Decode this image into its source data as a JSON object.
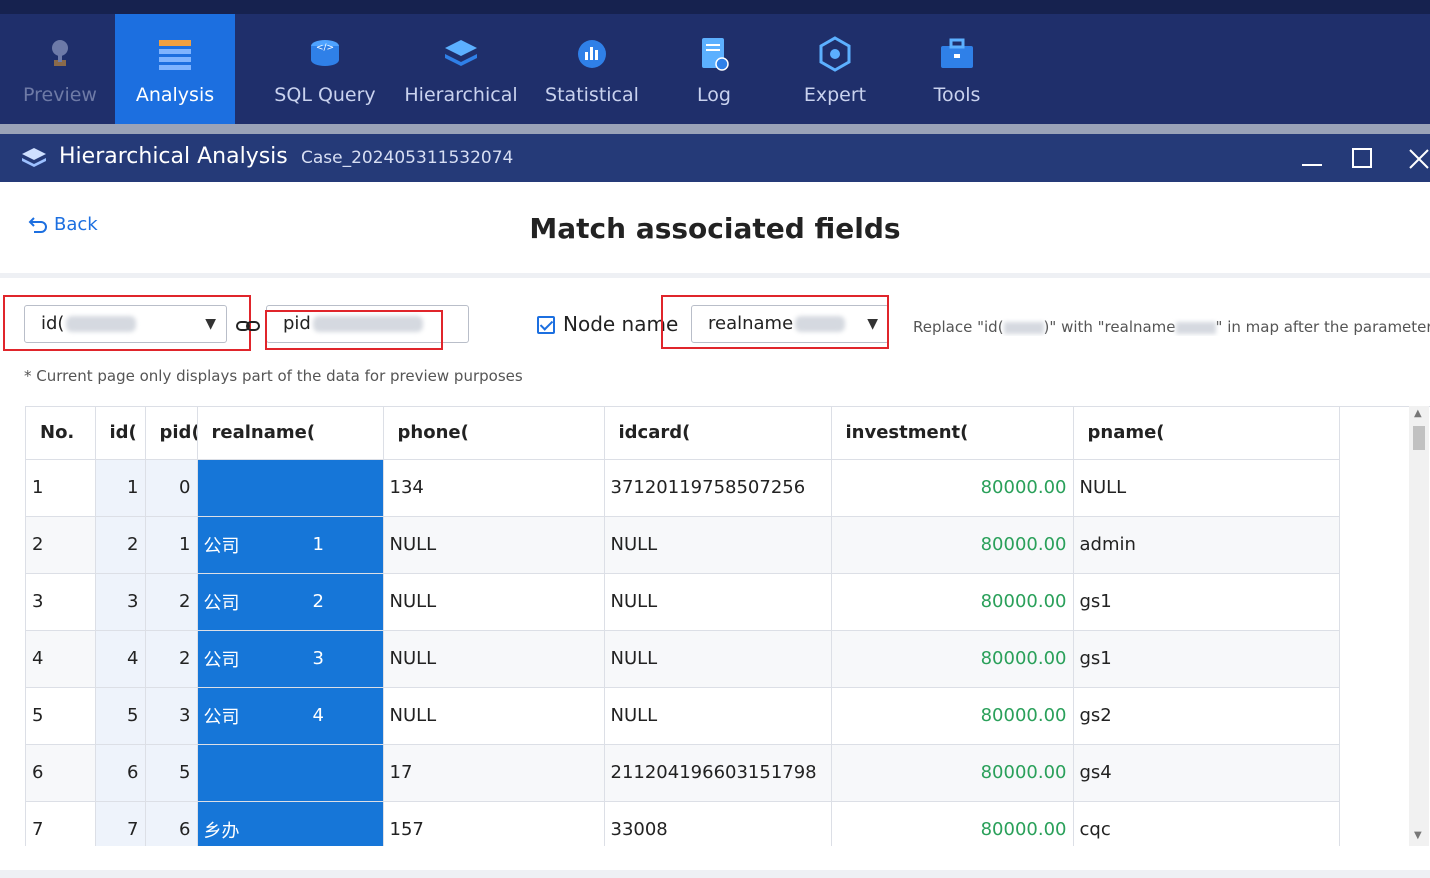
{
  "toolbar": {
    "items": [
      {
        "label": "Preview",
        "icon": "satellite-dish-icon"
      },
      {
        "label": "Analysis",
        "icon": "table-chart-icon"
      },
      {
        "label": "SQL Query",
        "icon": "code-database-icon"
      },
      {
        "label": "Hierarchical",
        "icon": "layers-icon"
      },
      {
        "label": "Statistical",
        "icon": "statistics-icon"
      },
      {
        "label": "Log",
        "icon": "log-document-icon"
      },
      {
        "label": "Expert",
        "icon": "expert-cube-icon"
      },
      {
        "label": "Tools",
        "icon": "toolbox-icon"
      }
    ],
    "active": "Analysis"
  },
  "window": {
    "title": "Hierarchical Analysis",
    "case": "Case_202405311532074"
  },
  "page": {
    "back_label": "Back",
    "title": "Match associated fields",
    "id_field": "id(",
    "pid_field": "pid",
    "node_name_label": "Node name",
    "node_name_value": "realname",
    "replace_note": "Replace \"id(",
    "replace_note_mid": ")\" with \"realname",
    "replace_note_end": "\" in map after the parameter",
    "hint": "* Current page only displays part of the data for preview purposes"
  },
  "table": {
    "columns": [
      "No.",
      "id(",
      "pid(",
      "realname(",
      "phone(",
      "idcard(",
      "investment(",
      "pname("
    ],
    "rows": [
      {
        "no": "1",
        "id": "1",
        "pid": "0",
        "rn": "",
        "rn_tail": "",
        "phone": "134",
        "idcard": "37120119758507256",
        "inv": "80000.00",
        "pname": "NULL"
      },
      {
        "no": "2",
        "id": "2",
        "pid": "1",
        "rn": "公司",
        "rn_tail": "1",
        "phone": "NULL",
        "idcard": "NULL",
        "inv": "80000.00",
        "pname": "admin"
      },
      {
        "no": "3",
        "id": "3",
        "pid": "2",
        "rn": "公司",
        "rn_tail": "2",
        "phone": "NULL",
        "idcard": "NULL",
        "inv": "80000.00",
        "pname": "gs1"
      },
      {
        "no": "4",
        "id": "4",
        "pid": "2",
        "rn": "公司",
        "rn_tail": "3",
        "phone": "NULL",
        "idcard": "NULL",
        "inv": "80000.00",
        "pname": "gs1"
      },
      {
        "no": "5",
        "id": "5",
        "pid": "3",
        "rn": "公司",
        "rn_tail": "4",
        "phone": "NULL",
        "idcard": "NULL",
        "inv": "80000.00",
        "pname": "gs2"
      },
      {
        "no": "6",
        "id": "6",
        "pid": "5",
        "rn": "",
        "rn_tail": "",
        "phone": "17",
        "idcard": "211204196603151798",
        "inv": "80000.00",
        "pname": "gs4"
      },
      {
        "no": "7",
        "id": "7",
        "pid": "6",
        "rn": "乡办",
        "rn_tail": "",
        "phone": "157",
        "idcard": "33008",
        "inv": "80000.00",
        "pname": "cqc"
      }
    ]
  },
  "colors": {
    "accent": "#1c6fe0",
    "toolbar_bg": "#1f2f6b",
    "money": "#2aa05a",
    "highlight": "#e0252b"
  }
}
